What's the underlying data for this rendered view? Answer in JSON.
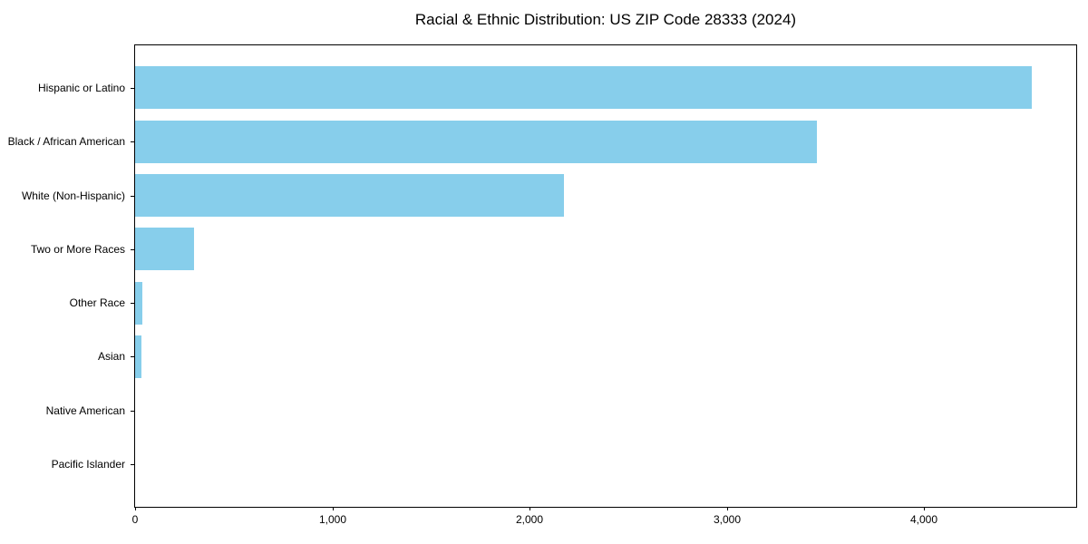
{
  "title": "Racial & Ethnic Distribution: US ZIP Code 28333 (2024)",
  "chart_data": {
    "type": "bar",
    "orientation": "horizontal",
    "title": "Racial & Ethnic Distribution: US ZIP Code 28333 (2024)",
    "xlabel": "",
    "ylabel": "",
    "categories": [
      "Hispanic or Latino",
      "Black / African American",
      "White (Non-Hispanic)",
      "Two or More Races",
      "Other Race",
      "Asian",
      "Native American",
      "Pacific Islander"
    ],
    "values": [
      4545,
      3455,
      2175,
      300,
      35,
      30,
      0,
      0
    ],
    "xlim": [
      0,
      4771
    ],
    "xticks": {
      "values": [
        0,
        1000,
        2000,
        3000,
        4000
      ],
      "labels": [
        "0",
        "1,000",
        "2,000",
        "3,000",
        "4,000"
      ]
    },
    "bar_color": "#87CEEB",
    "axis_color": "#000000",
    "background_color": "#ffffff",
    "grid": false,
    "legend": "none"
  }
}
